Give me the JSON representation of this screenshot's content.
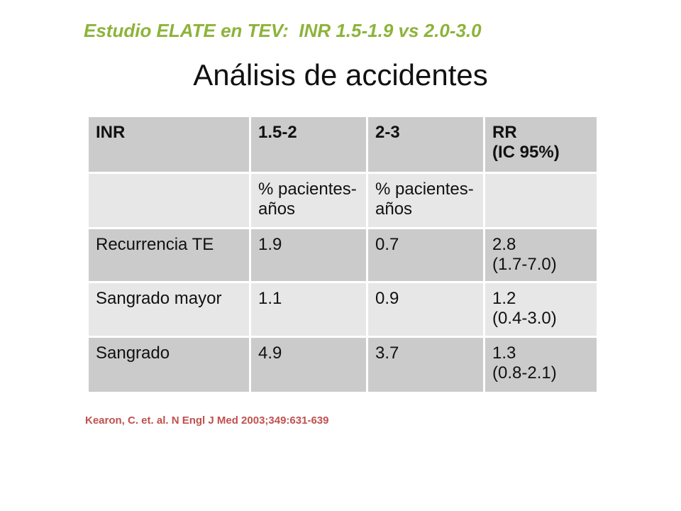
{
  "header": {
    "subtitle": "Estudio ELATE en TEV:  INR 1.5-1.9 vs 2.0-3.0",
    "title": "Análisis de accidentes"
  },
  "table": {
    "rows": [
      [
        "INR",
        "1.5-2",
        "2-3",
        "RR\n(IC 95%)"
      ],
      [
        null,
        "% pacientes-años",
        "% pacientes-años",
        null
      ],
      [
        "Recurrencia TE",
        "1.9",
        "0.7",
        "2.8\n(1.7-7.0)"
      ],
      [
        "Sangrado mayor",
        "1.1",
        "0.9",
        "1.2\n(0.4-3.0)"
      ],
      [
        "Sangrado",
        "4.9",
        "3.7",
        "1.3\n(0.8-2.1)"
      ]
    ]
  },
  "footer": {
    "citation": "Kearon, C. et. al. N Engl J Med 2003;349:631-639"
  }
}
